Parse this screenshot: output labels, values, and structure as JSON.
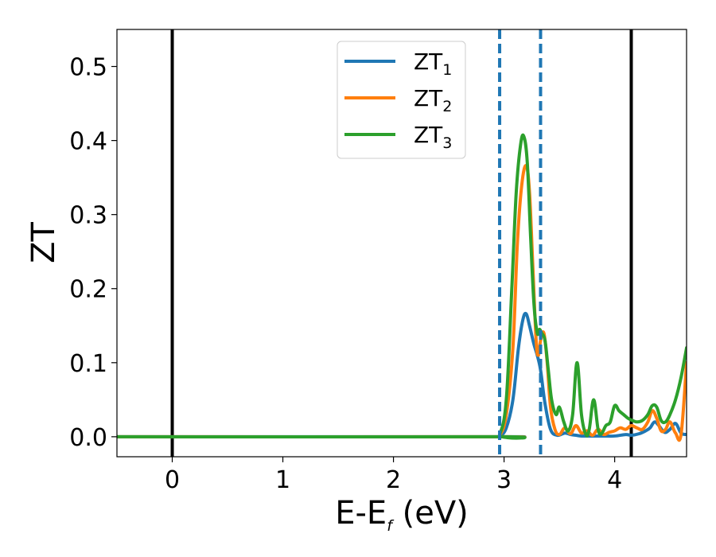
{
  "chart_data": {
    "type": "line",
    "xlabel": {
      "base": "E-E",
      "sub": "f",
      "unit": " (eV)"
    },
    "ylabel": "ZT",
    "xlim": [
      -0.5,
      4.65
    ],
    "ylim": [
      -0.027,
      0.55
    ],
    "xticks": [
      0,
      1,
      2,
      3,
      4
    ],
    "xtick_labels": [
      "0",
      "1",
      "2",
      "3",
      "4"
    ],
    "yticks": [
      0.0,
      0.1,
      0.2,
      0.3,
      0.4,
      0.5
    ],
    "ytick_labels": [
      "0.0",
      "0.1",
      "0.2",
      "0.3",
      "0.4",
      "0.5"
    ],
    "grid": false,
    "legend_position": "top-center",
    "vlines_solid": [
      0.0,
      4.15
    ],
    "vlines_dashed": [
      2.96,
      3.33
    ],
    "vline_solid_color": "#000000",
    "vline_dashed_color": "#1f77b4",
    "series": [
      {
        "name": "ZT1",
        "label_base": "ZT",
        "label_sub": "1",
        "color": "#1f77b4",
        "x": [
          -0.5,
          2.9,
          2.96,
          3.02,
          3.08,
          3.13,
          3.17,
          3.2,
          3.23,
          3.27,
          3.3,
          3.33,
          3.37,
          3.42,
          3.48,
          3.55,
          3.6,
          3.65,
          3.7,
          3.8,
          3.9,
          4.0,
          4.1,
          4.15,
          4.22,
          4.28,
          4.32,
          4.36,
          4.4,
          4.45,
          4.5,
          4.55,
          4.6,
          4.65
        ],
        "y": [
          0,
          0,
          0.001,
          0.012,
          0.05,
          0.12,
          0.158,
          0.166,
          0.15,
          0.125,
          0.11,
          0.09,
          0.045,
          0.01,
          0.002,
          0.005,
          0.003,
          0.002,
          0.001,
          0.001,
          0.001,
          0.001,
          0.003,
          0.002,
          0.004,
          0.008,
          0.012,
          0.02,
          0.015,
          0.006,
          0.01,
          0.018,
          0.005,
          0.003
        ]
      },
      {
        "name": "ZT2",
        "label_base": "ZT",
        "label_sub": "2",
        "color": "#ff7f0e",
        "x": [
          -0.5,
          2.9,
          2.96,
          3.02,
          3.08,
          3.12,
          3.16,
          3.2,
          3.23,
          3.26,
          3.29,
          3.31,
          3.33,
          3.36,
          3.39,
          3.42,
          3.46,
          3.5,
          3.55,
          3.6,
          3.65,
          3.7,
          3.75,
          3.8,
          3.85,
          3.9,
          3.95,
          4.0,
          4.05,
          4.1,
          4.15,
          4.2,
          4.25,
          4.3,
          4.34,
          4.38,
          4.42,
          4.46,
          4.5,
          4.55,
          4.6,
          4.65
        ],
        "y": [
          0,
          0,
          0.002,
          0.03,
          0.12,
          0.26,
          0.34,
          0.366,
          0.33,
          0.23,
          0.13,
          0.11,
          0.13,
          0.14,
          0.1,
          0.04,
          0.01,
          0.003,
          0.012,
          0.004,
          0.015,
          0.005,
          0.008,
          0.002,
          0.01,
          0.003,
          0.006,
          0.008,
          0.012,
          0.01,
          0.015,
          0.012,
          0.01,
          0.02,
          0.035,
          0.025,
          0.008,
          0.01,
          0.02,
          0.005,
          0.003,
          0.1
        ]
      },
      {
        "name": "ZT3",
        "label_base": "ZT",
        "label_sub": "3",
        "color": "#2ca02c",
        "x": [
          -0.5,
          2.9,
          2.96,
          3.02,
          3.07,
          3.11,
          3.15,
          3.18,
          3.21,
          3.24,
          3.27,
          3.3,
          3.32,
          3.34,
          3.37,
          3.4,
          3.43,
          3.47,
          3.5,
          3.54,
          3.58,
          3.62,
          3.66,
          3.7,
          3.74,
          3.77,
          3.81,
          3.85,
          3.88,
          3.92,
          3.96,
          4.0,
          4.04,
          4.08,
          4.12,
          4.16,
          4.2,
          4.25,
          4.3,
          4.34,
          4.38,
          4.42,
          4.46,
          4.5,
          4.55,
          4.6,
          4.65
        ],
        "y": [
          0,
          0,
          0.003,
          0.05,
          0.2,
          0.33,
          0.395,
          0.405,
          0.37,
          0.27,
          0.18,
          0.14,
          0.145,
          0.14,
          0.13,
          0.09,
          0.05,
          0.03,
          0.04,
          0.02,
          0.008,
          0.03,
          0.1,
          0.03,
          0.003,
          0.01,
          0.05,
          0.01,
          0.004,
          0.015,
          0.02,
          0.042,
          0.035,
          0.03,
          0.025,
          0.022,
          0.02,
          0.022,
          0.03,
          0.042,
          0.04,
          0.022,
          0.02,
          0.03,
          0.05,
          0.08,
          0.12
        ]
      }
    ]
  }
}
